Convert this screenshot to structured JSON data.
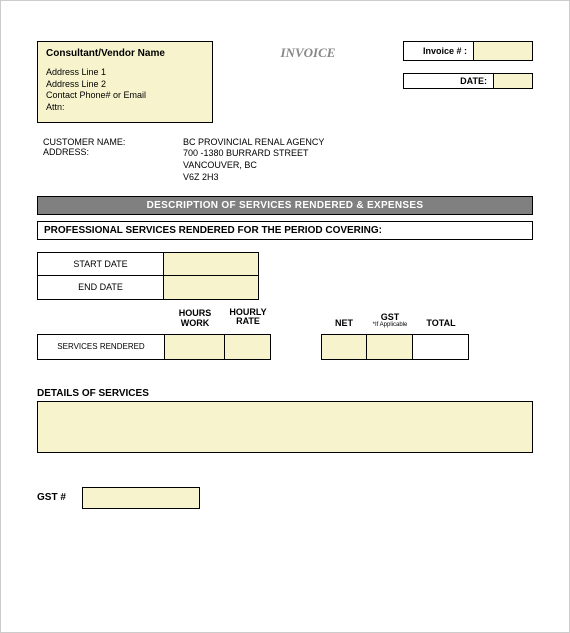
{
  "colors": {
    "fill": "#f7f4cd",
    "border": "#000000",
    "section_bar_bg": "#808080",
    "section_bar_text": "#ffffff",
    "page_border": "#cccccc",
    "background": "#ffffff",
    "heading_text": "#888888"
  },
  "vendor": {
    "title": "Consultant/Vendor Name",
    "address_line_1": "Address Line 1",
    "address_line_2": "Address Line 2",
    "contact_line": "Contact Phone# or Email",
    "attn_line": "Attn:"
  },
  "heading": "INVOICE",
  "fields": {
    "invoice_no_label": "Invoice # :",
    "invoice_no_value": "",
    "date_label": "DATE:",
    "date_value": ""
  },
  "customer": {
    "name_label": "CUSTOMER NAME:",
    "address_label": "ADDRESS:",
    "name": "BC PROVINCIAL RENAL AGENCY",
    "address_1": "700 -1380 BURRARD STREET",
    "address_2": "VANCOUVER, BC",
    "address_3": "V6Z 2H3"
  },
  "section_bar": "DESCRIPTION OF SERVICES RENDERED & EXPENSES",
  "sub_bar": "PROFESSIONAL SERVICES RENDERED FOR THE PERIOD COVERING:",
  "period": {
    "start_label": "START DATE",
    "start_value": "",
    "end_label": "END DATE",
    "end_value": ""
  },
  "columns": {
    "hours": "HOURS WORK",
    "rate_line1": "HOURLY",
    "rate_line2": "RATE",
    "net": "NET",
    "gst": "GST",
    "gst_sub": "*If Applicable",
    "total": "TOTAL"
  },
  "services": {
    "label": "SERVICES RENDERED",
    "hours": "",
    "rate": "",
    "net": "",
    "gst": "",
    "total": ""
  },
  "details": {
    "label": "DETAILS OF SERVICES",
    "text": ""
  },
  "gst_number": {
    "label": "GST #",
    "value": ""
  }
}
